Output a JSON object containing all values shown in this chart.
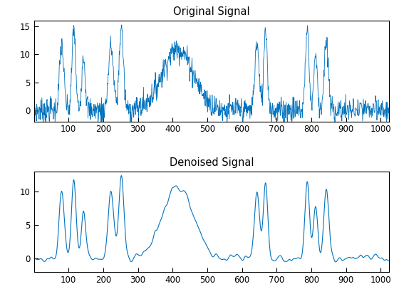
{
  "title1": "Original Signal",
  "title2": "Denoised Signal",
  "line_color": "#0072BD",
  "xlim": [
    0,
    1024
  ],
  "ylim1": [
    -2,
    16
  ],
  "ylim2": [
    -2,
    13
  ],
  "xticks": [
    100,
    200,
    300,
    400,
    500,
    600,
    700,
    800,
    900,
    1000
  ],
  "yticks1": [
    0,
    5,
    10,
    15
  ],
  "yticks2": [
    0,
    5,
    10
  ],
  "figsize": [
    5.6,
    4.2
  ],
  "dpi": 100,
  "seed": 7
}
